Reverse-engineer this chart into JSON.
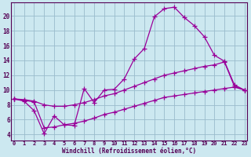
{
  "xlabel": "Windchill (Refroidissement éolien,°C)",
  "background_color": "#cce8f0",
  "grid_color": "#99bbcc",
  "line_color": "#990099",
  "x_ticks": [
    0,
    1,
    2,
    3,
    4,
    5,
    6,
    7,
    8,
    9,
    10,
    11,
    12,
    13,
    14,
    15,
    16,
    17,
    18,
    19,
    20,
    21,
    22,
    23
  ],
  "y_ticks": [
    4,
    6,
    8,
    10,
    12,
    14,
    16,
    18,
    20
  ],
  "xlim": [
    -0.3,
    23.3
  ],
  "ylim": [
    3.2,
    21.8
  ],
  "series": [
    {
      "x": [
        0,
        1,
        2,
        3,
        4,
        5,
        6,
        7,
        8,
        9,
        10,
        11,
        12,
        13,
        14,
        15,
        16,
        17,
        18,
        19,
        20,
        21,
        22,
        23
      ],
      "y": [
        8.8,
        8.5,
        7.2,
        4.1,
        6.5,
        5.3,
        5.2,
        10.2,
        8.3,
        10.0,
        10.1,
        11.5,
        14.2,
        15.6,
        19.9,
        21.0,
        21.2,
        19.8,
        18.7,
        17.2,
        14.7,
        13.9,
        10.7,
        10.0
      ]
    },
    {
      "x": [
        0,
        1,
        2,
        3,
        4,
        5,
        6,
        7,
        8,
        9,
        10,
        11,
        12,
        13,
        14,
        15,
        16,
        17,
        18,
        19,
        20,
        21,
        22,
        23
      ],
      "y": [
        8.8,
        8.7,
        8.5,
        8.0,
        7.8,
        7.8,
        8.0,
        8.3,
        8.7,
        9.2,
        9.5,
        10.0,
        10.5,
        11.0,
        11.5,
        12.0,
        12.3,
        12.6,
        12.9,
        13.2,
        13.4,
        13.8,
        10.5,
        10.0
      ]
    },
    {
      "x": [
        0,
        1,
        2,
        3,
        4,
        5,
        6,
        7,
        8,
        9,
        10,
        11,
        12,
        13,
        14,
        15,
        16,
        17,
        18,
        19,
        20,
        21,
        22,
        23
      ],
      "y": [
        8.8,
        8.6,
        8.4,
        4.9,
        5.0,
        5.3,
        5.5,
        5.8,
        6.2,
        6.7,
        7.0,
        7.4,
        7.8,
        8.2,
        8.6,
        9.0,
        9.2,
        9.4,
        9.6,
        9.8,
        10.0,
        10.2,
        10.4,
        10.0
      ]
    }
  ]
}
